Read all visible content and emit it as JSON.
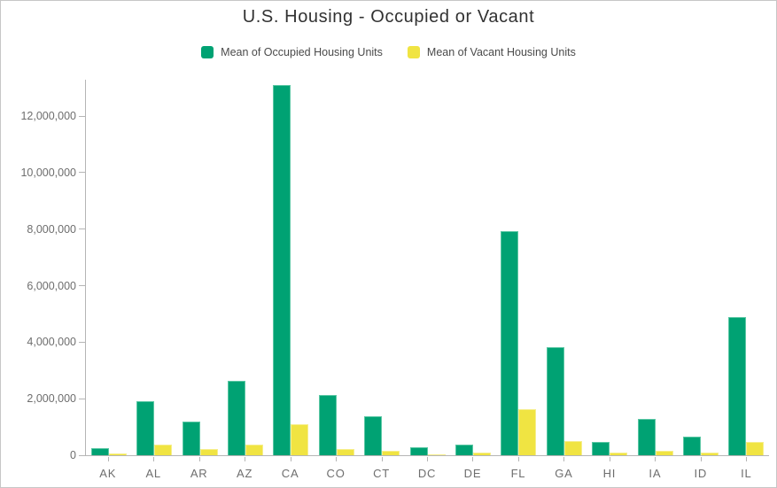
{
  "chart_data": {
    "type": "bar",
    "title": "U.S. Housing - Occupied or Vacant",
    "legend_position": "top",
    "grid": false,
    "categories": [
      "AK",
      "AL",
      "AR",
      "AZ",
      "CA",
      "CO",
      "CT",
      "DC",
      "DE",
      "FL",
      "GA",
      "HI",
      "IA",
      "ID",
      "IL"
    ],
    "series": [
      {
        "name": "Mean of Occupied Housing Units",
        "color": "#00A273",
        "stroke": "#5BC7A4",
        "values": [
          260000,
          1900000,
          1180000,
          2640000,
          13100000,
          2120000,
          1390000,
          295000,
          365000,
          7930000,
          3830000,
          460000,
          1270000,
          645000,
          4890000
        ]
      },
      {
        "name": "Mean of Vacant Housing Units",
        "color": "#F0E442",
        "stroke": "#F6EE8C",
        "values": [
          65000,
          380000,
          215000,
          385000,
          1110000,
          235000,
          145000,
          35000,
          85000,
          1640000,
          490000,
          90000,
          145000,
          85000,
          485000
        ]
      }
    ],
    "y_axis": {
      "min": 0,
      "axis_max": 13320000,
      "tick_values": [
        0,
        2000000,
        4000000,
        6000000,
        8000000,
        10000000,
        12000000
      ],
      "tick_labels": [
        "0",
        "2,000,000",
        "4,000,000",
        "6,000,000",
        "8,000,000",
        "10,000,000",
        "12,000,000"
      ]
    }
  },
  "colors": {
    "background": "#ffffff",
    "frame_border": "#c6c6c6",
    "title_text": "#323232",
    "legend_text": "#4a4a4a",
    "axis_line": "#b5b5b5",
    "tick_text": "#6e6e6e"
  }
}
